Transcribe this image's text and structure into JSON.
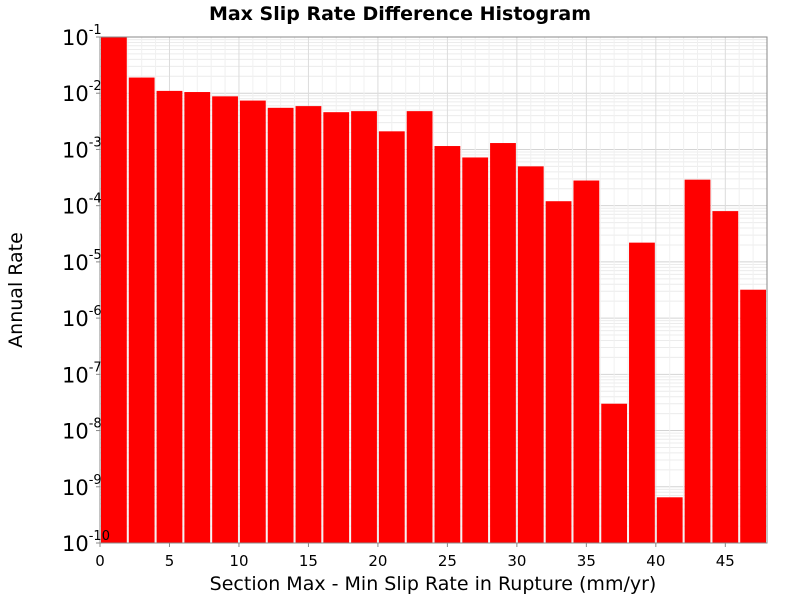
{
  "chart_data": {
    "type": "bar",
    "title": "Max Slip Rate Difference Histogram",
    "xlabel": "Section Max - Min Slip Rate in Rupture (mm/yr)",
    "ylabel": "Annual Rate",
    "x_ticks": [
      0,
      5,
      10,
      15,
      20,
      25,
      30,
      35,
      40,
      45
    ],
    "xlim": [
      0,
      48
    ],
    "y_scale": "log",
    "ylim": [
      1e-10,
      0.1
    ],
    "y_tick_exponents": [
      -1,
      -2,
      -3,
      -4,
      -5,
      -6,
      -7,
      -8,
      -9,
      -10
    ],
    "y_tick_base": "10",
    "grid": true,
    "bin_width": 2,
    "bin_centers": [
      1,
      3,
      5,
      7,
      9,
      11,
      13,
      15,
      17,
      19,
      21,
      23,
      25,
      27,
      29,
      31,
      33,
      35,
      37,
      39,
      41,
      43,
      45,
      47
    ],
    "values": [
      0.1,
      0.019,
      0.011,
      0.0105,
      0.0088,
      0.0074,
      0.0055,
      0.0059,
      0.0046,
      0.0048,
      0.0021,
      0.0048,
      0.00115,
      0.00072,
      0.0013,
      0.0005,
      0.00012,
      0.00028,
      3e-08,
      2.2e-05,
      6.5e-10,
      0.00029,
      8e-05,
      3.2e-06
    ],
    "bar_color": "#ff0000"
  }
}
